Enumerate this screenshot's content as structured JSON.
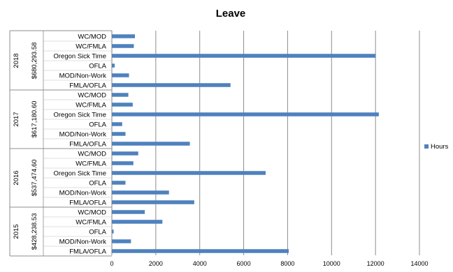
{
  "chart_data": {
    "type": "bar",
    "orientation": "horizontal",
    "title": "Leave",
    "xlim": [
      0,
      14000
    ],
    "x_ticks": [
      0,
      2000,
      4000,
      6000,
      8000,
      10000,
      12000,
      14000
    ],
    "grid": true,
    "legend_position": "right",
    "series": [
      {
        "name": "Hours",
        "color": "#4f81bd"
      }
    ],
    "groups": [
      {
        "year": "2018",
        "amount": "$680,293.58",
        "items": [
          {
            "label": "WC/MOD",
            "value": 1050
          },
          {
            "label": "WC/FMLA",
            "value": 1000
          },
          {
            "label": "Oregon Sick Time",
            "value": 12000
          },
          {
            "label": "OFLA",
            "value": 130
          },
          {
            "label": "MOD/Non-Work",
            "value": 780
          },
          {
            "label": "FMLA/OFLA",
            "value": 5400
          }
        ]
      },
      {
        "year": "2017",
        "amount": "$617,180.60",
        "items": [
          {
            "label": "WC/MOD",
            "value": 750
          },
          {
            "label": "WC/FMLA",
            "value": 950
          },
          {
            "label": "Oregon Sick Time",
            "value": 12150
          },
          {
            "label": "OFLA",
            "value": 470
          },
          {
            "label": "MOD/Non-Work",
            "value": 620
          },
          {
            "label": "FMLA/OFLA",
            "value": 3550
          }
        ]
      },
      {
        "year": "2016",
        "amount": "$537,474.60",
        "items": [
          {
            "label": "WC/MOD",
            "value": 1200
          },
          {
            "label": "WC/FMLA",
            "value": 980
          },
          {
            "label": "Oregon Sick Time",
            "value": 7000
          },
          {
            "label": "OFLA",
            "value": 620
          },
          {
            "label": "MOD/Non-Work",
            "value": 2600
          },
          {
            "label": "FMLA/OFLA",
            "value": 3750
          }
        ]
      },
      {
        "year": "2015",
        "amount": "$428,238.53",
        "items": [
          {
            "label": "WC/MOD",
            "value": 1500
          },
          {
            "label": "WC/FMLA",
            "value": 2300
          },
          {
            "label": "OFLA",
            "value": 80
          },
          {
            "label": "MOD/Non-Work",
            "value": 870
          },
          {
            "label": "FMLA/OFLA",
            "value": 8050
          }
        ]
      }
    ]
  }
}
